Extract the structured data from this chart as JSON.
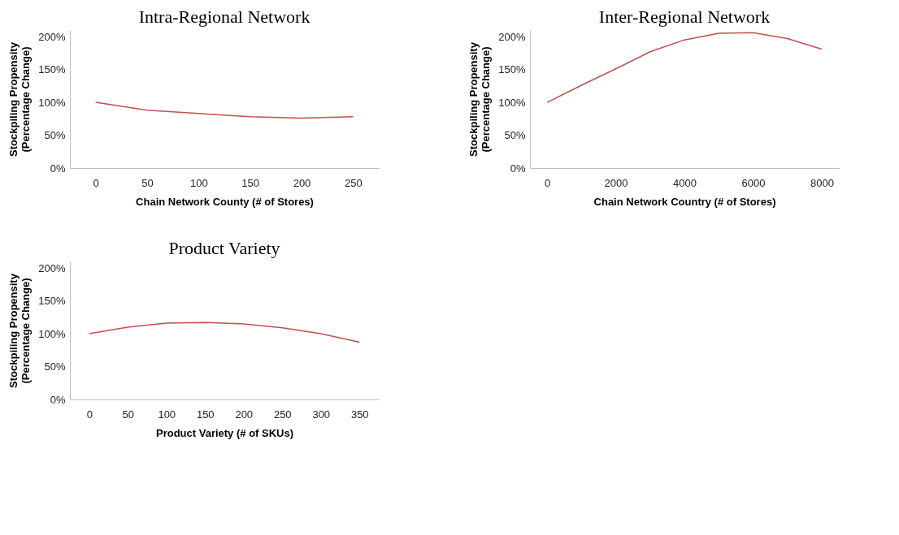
{
  "chart_data": [
    {
      "type": "line",
      "title": "Intra-Regional Network",
      "xlabel": "Chain Network County (# of Stores)",
      "ylabel": "Stockpiling Propensity\n(Percentage Change)",
      "x": [
        0,
        50,
        100,
        150,
        200,
        250
      ],
      "series": [
        {
          "color": "#c0504d",
          "values": [
            100,
            88,
            83,
            78,
            76,
            78
          ]
        }
      ],
      "xlim": [
        -25,
        275
      ],
      "xticks": [
        0,
        50,
        100,
        150,
        200,
        250
      ],
      "ylim": [
        0,
        210
      ],
      "yticks": [
        {
          "value": 0,
          "label": "0%"
        },
        {
          "value": 50,
          "label": "50%"
        },
        {
          "value": 100,
          "label": "100%"
        },
        {
          "value": 150,
          "label": "150%"
        },
        {
          "value": 200,
          "label": "200%"
        }
      ],
      "grid": false,
      "marker": "none",
      "line_style": "solid"
    },
    {
      "type": "line",
      "title": "Inter-Regional Network",
      "xlabel": "Chain Network Country (# of Stores)",
      "ylabel": "Stockpiling Propensity\n(Percentage Change)",
      "x": [
        0,
        1000,
        2000,
        3000,
        4000,
        5000,
        6000,
        7000,
        8000
      ],
      "series": [
        {
          "color": "#c0504d",
          "values": [
            100,
            126,
            151,
            177,
            195,
            205,
            206,
            197,
            181
          ]
        }
      ],
      "xlim": [
        -500,
        8500
      ],
      "xticks": [
        0,
        2000,
        4000,
        6000,
        8000
      ],
      "ylim": [
        0,
        210
      ],
      "yticks": [
        {
          "value": 0,
          "label": "0%"
        },
        {
          "value": 50,
          "label": "50%"
        },
        {
          "value": 100,
          "label": "100%"
        },
        {
          "value": 150,
          "label": "150%"
        },
        {
          "value": 200,
          "label": "200%"
        }
      ],
      "grid": false,
      "marker": "none",
      "line_style": "solid"
    },
    {
      "type": "line",
      "title": "Product Variety",
      "xlabel": "Product Variety (# of SKUs)",
      "ylabel": "Stockpiling Propensity\n(Percentage Change)",
      "x": [
        0,
        50,
        100,
        150,
        200,
        250,
        300,
        350
      ],
      "series": [
        {
          "color": "#c0504d",
          "values": [
            100,
            110,
            116,
            117,
            115,
            109,
            100,
            87
          ]
        }
      ],
      "xlim": [
        -25,
        375
      ],
      "xticks": [
        0,
        50,
        100,
        150,
        200,
        250,
        300,
        350
      ],
      "ylim": [
        0,
        210
      ],
      "yticks": [
        {
          "value": 0,
          "label": "0%"
        },
        {
          "value": 50,
          "label": "50%"
        },
        {
          "value": 100,
          "label": "100%"
        },
        {
          "value": 150,
          "label": "150%"
        },
        {
          "value": 200,
          "label": "200%"
        }
      ],
      "grid": false,
      "marker": "none",
      "line_style": "solid"
    }
  ]
}
